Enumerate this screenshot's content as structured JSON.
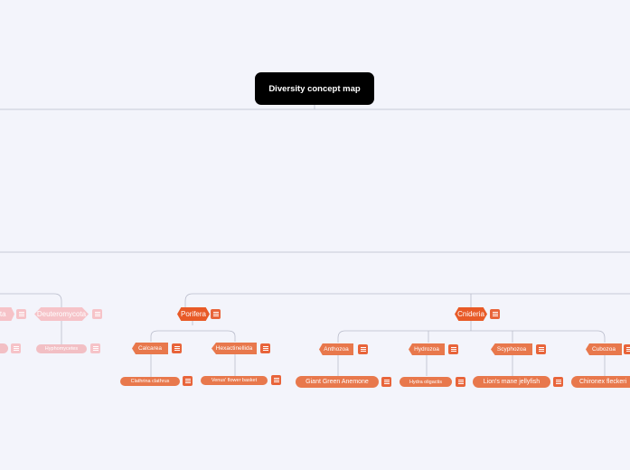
{
  "title": "Diversity concept map",
  "nodes": {
    "porifera": "Porifera",
    "calcarea": "Calcarea",
    "hexactinellida": "Hexactinellida",
    "clathrina": "Clathrina clathrus",
    "venus": "Venus' flower basket",
    "cnideria": "Cnideria",
    "anthozoa": "Anthozoa",
    "hydrozoa": "Hydrozoa",
    "scyphozoa": "Scyphozoa",
    "cubozoa": "Cubozoa",
    "anemone": "Giant Green Anemone",
    "hydra": "Hydra oligactis",
    "lions_mane": "Lion's mane jellyfish",
    "chironex": "Chironex fleckeri",
    "deuteromycota": "Deuteromycota",
    "hyphomycetes": "Hyphomycetes",
    "partial_left": "ota"
  },
  "icons": {
    "note": "note-icon"
  },
  "colors": {
    "background": "#f3f4fb",
    "root": "#000000",
    "main": "#e85a27",
    "sub": "#e8784c",
    "faded": "#f6c3c8",
    "connector": "#b9bccb"
  }
}
